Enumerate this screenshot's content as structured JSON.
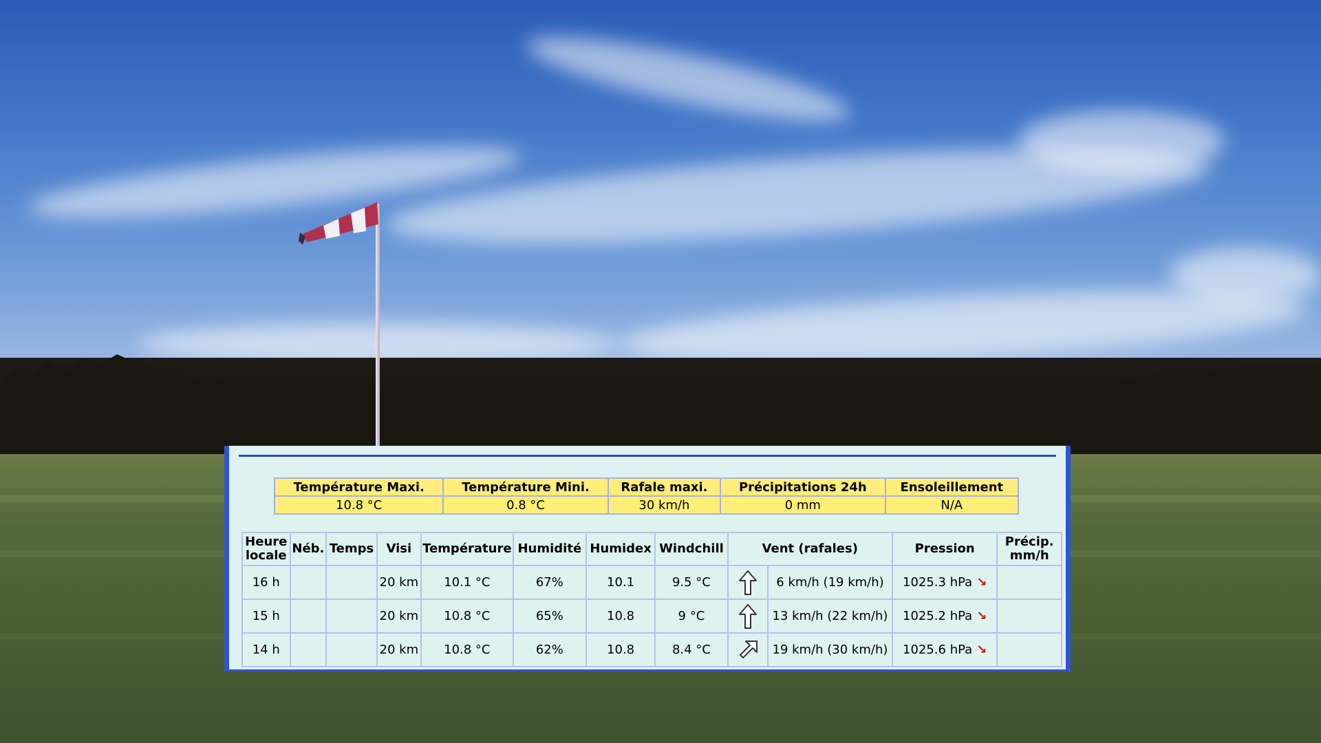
{
  "summary": {
    "headers": [
      "Température Maxi.",
      "Température Mini.",
      "Rafale maxi.",
      "Précipitations 24h",
      "Ensoleillement"
    ],
    "values": [
      "10.8 °C",
      "0.8 °C",
      "30 km/h",
      "0 mm",
      "N/A"
    ]
  },
  "table": {
    "headers": {
      "heure_line1": "Heure",
      "heure_line2": "locale",
      "neb": "Néb.",
      "temps": "Temps",
      "visi": "Visi",
      "temperature": "Température",
      "humidite": "Humidité",
      "humidex": "Humidex",
      "windchill": "Windchill",
      "vent": "Vent (rafales)",
      "pression": "Pression",
      "precip_line1": "Précip.",
      "precip_line2": "mm/h"
    },
    "rows": [
      {
        "heure": "16 h",
        "neb": "",
        "temps": "",
        "visi": "20 km",
        "temperature": "10.1 °C",
        "humidite": "67%",
        "humidex": "10.1",
        "windchill": "9.5 °C",
        "wind_icon": "arrow-up-icon",
        "vent": "6 km/h (19 km/h)",
        "pression": "1025.3 hPa",
        "trend_icon": "arrow-down-right-icon",
        "precip": ""
      },
      {
        "heure": "15 h",
        "neb": "",
        "temps": "",
        "visi": "20 km",
        "temperature": "10.8 °C",
        "humidite": "65%",
        "humidex": "10.8",
        "windchill": "9 °C",
        "wind_icon": "arrow-up-icon",
        "vent": "13 km/h (22 km/h)",
        "pression": "1025.2 hPa",
        "trend_icon": "arrow-down-right-icon",
        "precip": ""
      },
      {
        "heure": "14 h",
        "neb": "",
        "temps": "",
        "visi": "20 km",
        "temperature": "10.8 °C",
        "humidite": "62%",
        "humidex": "10.8",
        "windchill": "8.4 °C",
        "wind_icon": "arrow-up-right-icon",
        "vent": "19 km/h (30 km/h)",
        "pression": "1025.6 hPa",
        "trend_icon": "arrow-down-right-icon",
        "precip": ""
      }
    ]
  },
  "colors": {
    "panel_bg": "#def3ef",
    "panel_border": "#2f55d2",
    "summary_bg": "#ffee7a",
    "trend_arrow": "#d01010"
  }
}
